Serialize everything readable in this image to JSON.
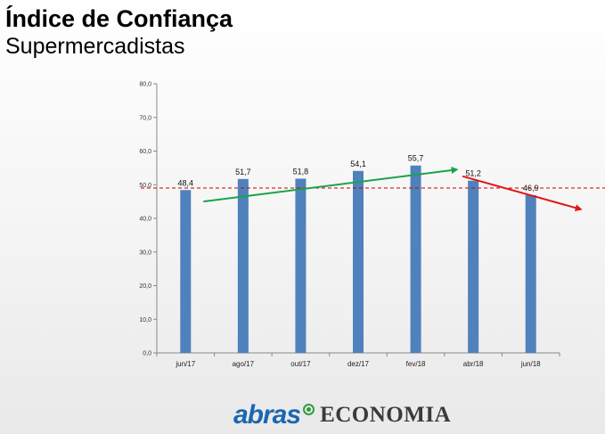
{
  "header": {
    "title": "Índice de Confiança",
    "subtitle": "Supermercadistas"
  },
  "footer": {
    "brand": "abras",
    "section": "ECONOMIA"
  },
  "chart_data": {
    "type": "bar",
    "categories": [
      "jun/17",
      "ago/17",
      "out/17",
      "dez/17",
      "fev/18",
      "abr/18",
      "jun/18"
    ],
    "values": [
      48.4,
      51.7,
      51.8,
      54.1,
      55.7,
      51.2,
      46.9
    ],
    "value_labels": [
      "48,4",
      "51,7",
      "51,8",
      "54,1",
      "55,7",
      "51,2",
      "46,9"
    ],
    "ylim": [
      0,
      80
    ],
    "yticks": [
      0,
      10,
      20,
      30,
      40,
      50,
      60,
      70,
      80
    ],
    "ytick_labels": [
      "0,0",
      "10,0",
      "20,0",
      "30,0",
      "40,0",
      "50,0",
      "60,0",
      "70,0",
      "80,0"
    ],
    "reference_line": {
      "value": 49,
      "color": "#cc0000",
      "style": "dashed"
    },
    "trend_arrows": [
      {
        "from": {
          "x": "jun/17",
          "y": 45
        },
        "to": {
          "x": "fev/18",
          "y": 54.5
        },
        "color": "#1aa34a"
      },
      {
        "from": {
          "x": "abr/18",
          "y": 52.5
        },
        "to": {
          "x": "jun/18",
          "y": 42.7
        },
        "color": "#e01515"
      }
    ],
    "bar_color": "#4f81bd",
    "grid": false,
    "title": "",
    "xlabel": "",
    "ylabel": ""
  }
}
